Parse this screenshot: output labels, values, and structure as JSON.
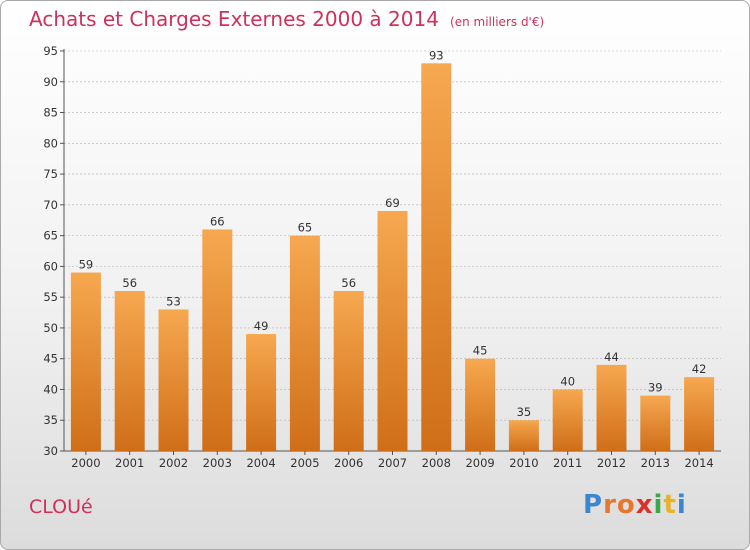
{
  "header": {
    "title": "Achats et Charges Externes 2000 à 2014",
    "unit": "(en milliers d'€)"
  },
  "footer": {
    "commune": "CLOUé",
    "logo_letters": [
      "P",
      "r",
      "o",
      "x",
      "i",
      "t",
      "i"
    ],
    "logo_colors": [
      "#3a86d0",
      "#e8762c",
      "#e8762c",
      "#d8332a",
      "#3aa84a",
      "#e8b22a",
      "#3a86d0"
    ]
  },
  "colors": {
    "title": "#d0305a",
    "bar_light": "#f6a850",
    "bar_dark": "#d06e18",
    "grid": "#b0b0b0",
    "axis_text": "#333333"
  },
  "chart_data": {
    "type": "bar",
    "title": "Achats et Charges Externes 2000 à 2014",
    "categories": [
      "2000",
      "2001",
      "2002",
      "2003",
      "2004",
      "2005",
      "2006",
      "2007",
      "2008",
      "2009",
      "2010",
      "2011",
      "2012",
      "2013",
      "2014"
    ],
    "values": [
      59,
      56,
      53,
      66,
      49,
      65,
      56,
      69,
      93,
      45,
      35,
      40,
      44,
      39,
      42
    ],
    "ylim": [
      30,
      95
    ],
    "yticks": [
      30,
      35,
      40,
      45,
      50,
      55,
      60,
      65,
      70,
      75,
      80,
      85,
      90,
      95
    ],
    "grid": true,
    "xlabel": "",
    "ylabel": ""
  }
}
